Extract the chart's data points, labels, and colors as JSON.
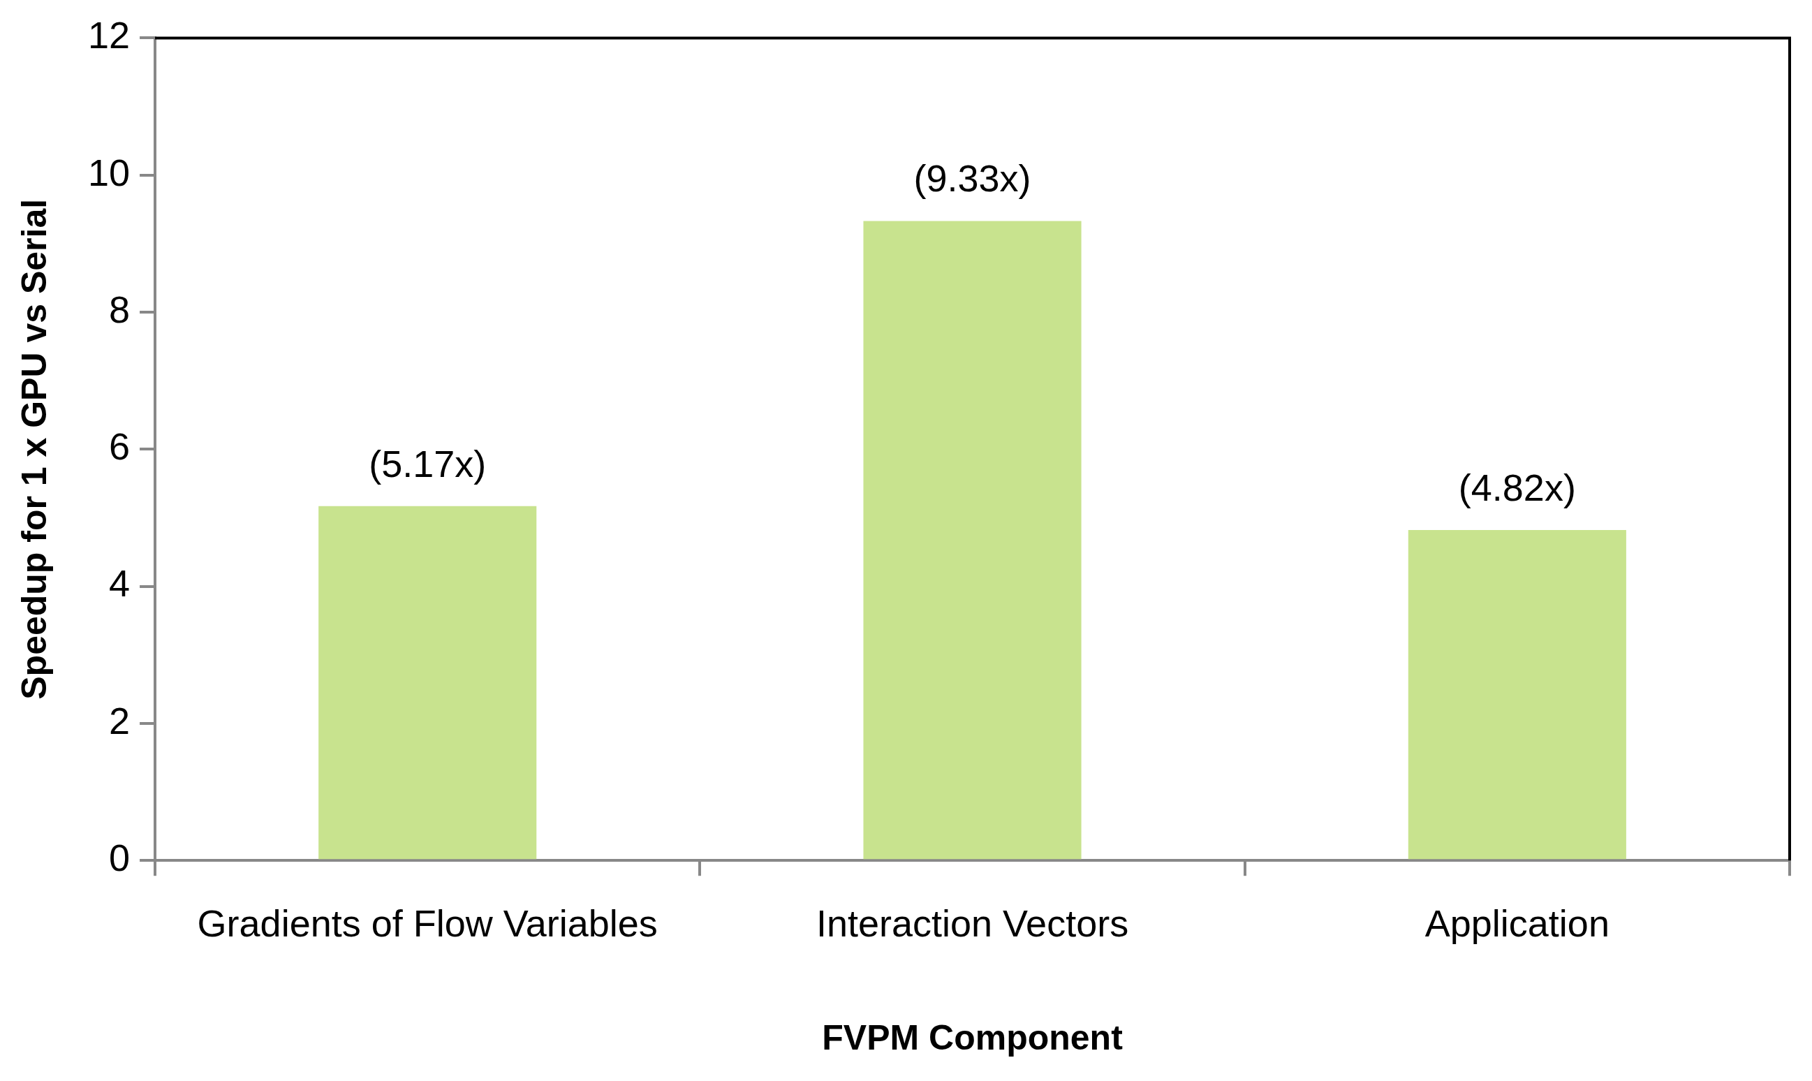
{
  "chart_data": {
    "type": "bar",
    "xlabel": "FVPM Component",
    "ylabel": "Speedup for 1 x GPU vs Serial",
    "categories": [
      "Gradients of Flow Variables",
      "Interaction Vectors",
      "Application"
    ],
    "values": [
      5.17,
      9.33,
      4.82
    ],
    "value_labels": [
      "(5.17x)",
      "(9.33x)",
      "(4.82x)"
    ],
    "color": "#c8e38e",
    "ylim": [
      0,
      12
    ],
    "yticks": [
      0,
      2,
      4,
      6,
      8,
      10,
      12
    ],
    "grid": false,
    "legend": false
  }
}
